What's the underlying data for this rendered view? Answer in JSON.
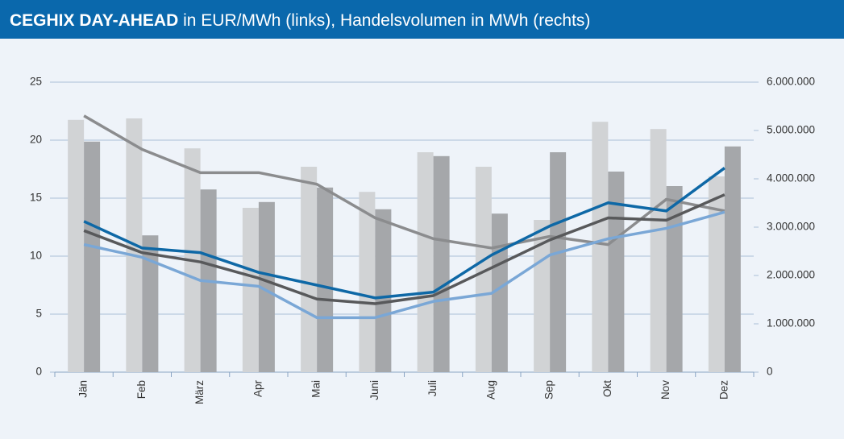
{
  "chart_data": {
    "type": "bar",
    "title": "CEGHIX DAY-AHEAD",
    "subtitle": "in EUR/MWh (links), Handelsvolumen in MWh (rechts)",
    "categories": [
      "Jän",
      "Feb",
      "März",
      "Apr",
      "Mai",
      "Juni",
      "Juli",
      "Aug",
      "Sep",
      "Okt",
      "Nov",
      "Dez"
    ],
    "ylim": [
      0,
      25
    ],
    "yticks": [
      0,
      5,
      10,
      15,
      20,
      25
    ],
    "y2lim": [
      0,
      6000000
    ],
    "y2ticks": [
      0,
      {
        "value": 1000000,
        "label": "1.000.000"
      },
      {
        "value": 2000000,
        "label": "2.000.000"
      },
      {
        "value": 3000000,
        "label": "3.000.000"
      },
      {
        "value": 4000000,
        "label": "4.000.000"
      },
      {
        "value": 5000000,
        "label": "5.000.000"
      },
      {
        "value": 6000000,
        "label": "6.000.000"
      }
    ],
    "grid": true,
    "series": [
      {
        "type": "bar",
        "axis": "y2",
        "color": "#d1d3d5",
        "values": [
          5220000,
          5250000,
          4630000,
          3400000,
          4250000,
          3730000,
          4550000,
          4250000,
          3150000,
          5180000,
          5030000,
          4050000
        ]
      },
      {
        "type": "bar",
        "axis": "y2",
        "color": "#a5a7aa",
        "values": [
          4770000,
          2830000,
          3780000,
          3520000,
          3820000,
          3370000,
          4470000,
          3280000,
          4550000,
          4150000,
          3850000,
          4670000
        ]
      },
      {
        "type": "line",
        "color": "#8b8c8e",
        "values": [
          22.1,
          19.2,
          17.2,
          17.2,
          16.2,
          13.3,
          11.5,
          10.7,
          11.7,
          11.0,
          14.9,
          13.9
        ]
      },
      {
        "type": "line",
        "color": "#7aa7d6",
        "values": [
          11.0,
          9.9,
          7.9,
          7.4,
          4.7,
          4.7,
          6.1,
          6.8,
          10.1,
          11.5,
          12.4,
          13.8
        ]
      },
      {
        "type": "line",
        "color": "#58595b",
        "values": [
          12.2,
          10.3,
          9.5,
          8.1,
          6.3,
          5.9,
          6.6,
          9.0,
          11.4,
          13.3,
          13.1,
          15.3
        ]
      },
      {
        "type": "line",
        "color": "#0e68a6",
        "values": [
          13.0,
          10.7,
          10.3,
          8.6,
          7.5,
          6.4,
          6.9,
          10.1,
          12.6,
          14.6,
          13.9,
          17.6
        ]
      }
    ]
  }
}
